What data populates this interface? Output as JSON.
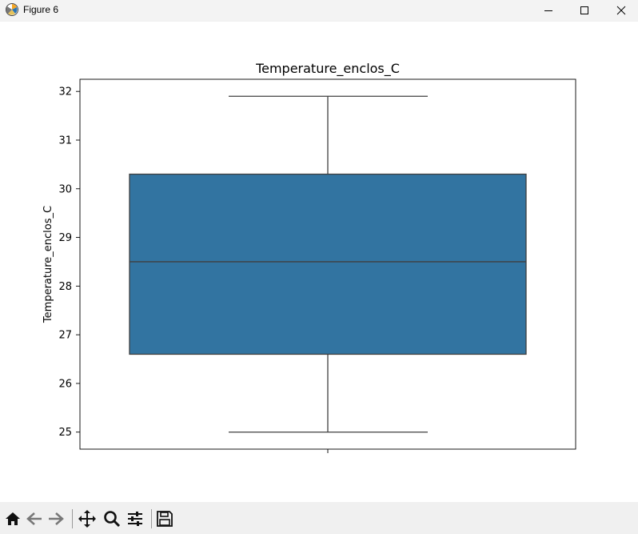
{
  "window": {
    "title": "Figure 6",
    "icons": [
      "matplotlib-app-icon",
      "minimize-icon",
      "maximize-icon",
      "close-icon"
    ]
  },
  "toolbar": {
    "tools": [
      "home-icon",
      "back-icon",
      "forward-icon",
      "pan-icon",
      "zoom-icon",
      "configure-subplots-icon",
      "save-icon"
    ]
  },
  "chart_data": {
    "type": "box",
    "title": "Temperature_enclos_C",
    "xlabel": "",
    "ylabel": "Temperature_enclos_C",
    "ylim": [
      24.65,
      32.25
    ],
    "yticks": [
      25,
      26,
      27,
      28,
      29,
      30,
      31,
      32
    ],
    "grid": false,
    "box": {
      "whisker_low": 25.0,
      "q1": 26.6,
      "median": 28.5,
      "q3": 30.3,
      "whisker_high": 31.9
    },
    "colors": {
      "box_fill": "#3274a1",
      "lines": "#3f3f3f"
    }
  }
}
